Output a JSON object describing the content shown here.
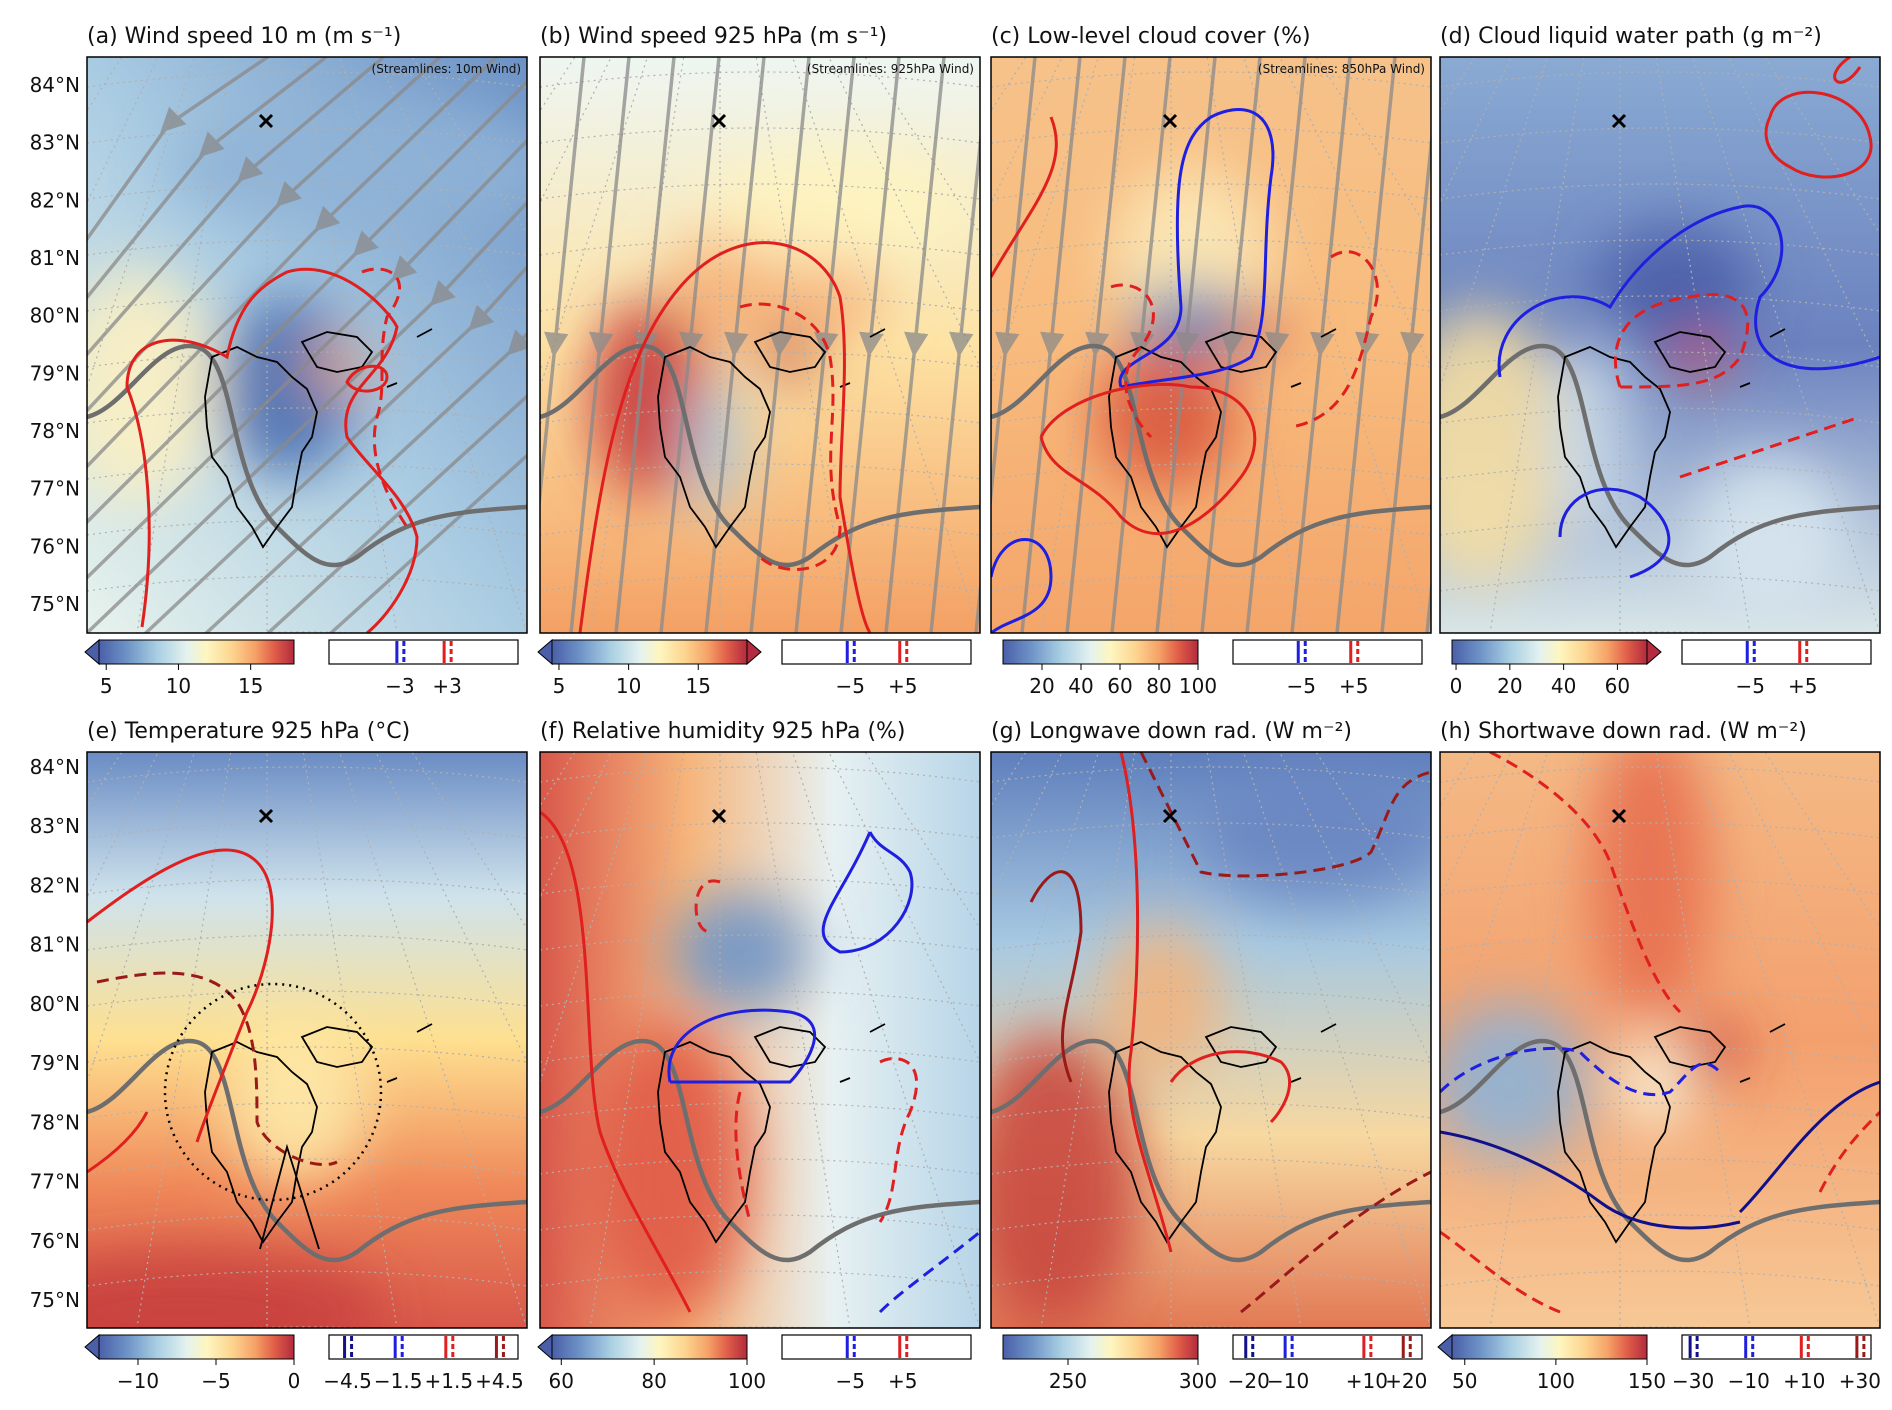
{
  "lat_labels": [
    "84°N",
    "83°N",
    "82°N",
    "81°N",
    "80°N",
    "79°N",
    "78°N",
    "77°N",
    "76°N",
    "75°N"
  ],
  "panels": [
    {
      "title": "(a) Wind speed 10 m (m s⁻¹)",
      "streamlines": "(Streamlines: 10m Wind)",
      "colorbar": {
        "lim": [
          4.5,
          18
        ],
        "ticks": [
          5,
          10,
          15
        ],
        "extend": "min"
      },
      "contours": {
        "lim": [
          -12,
          12
        ],
        "ticks": [
          {
            "value": -3,
            "label": "−3",
            "color": "#1f1fe0"
          },
          {
            "value": 3,
            "label": "+3",
            "color": "#e01f1f"
          }
        ]
      }
    },
    {
      "title": "(b) Wind speed 925 hPa (m s⁻¹)",
      "streamlines": "(Streamlines: 925hPa Wind)",
      "colorbar": {
        "lim": [
          4.5,
          18.5
        ],
        "ticks": [
          5,
          10,
          15
        ],
        "extend": "both"
      },
      "contours": {
        "lim": [
          -18,
          18
        ],
        "ticks": [
          {
            "value": -5,
            "label": "−5",
            "color": "#1f1fe0"
          },
          {
            "value": 5,
            "label": "+5",
            "color": "#e01f1f"
          }
        ]
      }
    },
    {
      "title": "(c) Low-level cloud cover (%)",
      "streamlines": "(Streamlines: 850hPa Wind)",
      "colorbar": {
        "lim": [
          0,
          100
        ],
        "ticks": [
          20,
          40,
          60,
          80,
          100
        ],
        "extend": "neither"
      },
      "contours": {
        "lim": [
          -18,
          18
        ],
        "ticks": [
          {
            "value": -5,
            "label": "−5",
            "color": "#1f1fe0"
          },
          {
            "value": 5,
            "label": "+5",
            "color": "#e01f1f"
          }
        ]
      }
    },
    {
      "title": "(d) Cloud liquid water path (g m⁻²)",
      "colorbar": {
        "lim": [
          -1.5,
          71
        ],
        "ticks": [
          0,
          20,
          40,
          60
        ],
        "extend": "max"
      },
      "contours": {
        "lim": [
          -18,
          18
        ],
        "ticks": [
          {
            "value": -5,
            "label": "−5",
            "color": "#1f1fe0"
          },
          {
            "value": 5,
            "label": "+5",
            "color": "#e01f1f"
          }
        ]
      }
    },
    {
      "title": "(e) Temperature 925 hPa (°C)",
      "colorbar": {
        "lim": [
          -12.5,
          0
        ],
        "ticks": [
          {
            "value": -10,
            "label": "−10"
          },
          {
            "value": -5,
            "label": "−5"
          },
          0
        ],
        "extend": "min"
      },
      "contours": {
        "lim": [
          -5.6,
          5.6
        ],
        "ticks": [
          {
            "value": -4.5,
            "label": "−4.5",
            "color": "#10108a"
          },
          {
            "value": -1.5,
            "label": "−1.5",
            "color": "#1f1fe0"
          },
          {
            "value": 1.5,
            "label": "+1.5",
            "color": "#e01f1f"
          },
          {
            "value": 4.5,
            "label": "+4.5",
            "color": "#9a1a1a"
          }
        ]
      }
    },
    {
      "title": "(f) Relative humidity 925 hPa (%)",
      "colorbar": {
        "lim": [
          58,
          100
        ],
        "ticks": [
          60,
          80,
          100
        ],
        "extend": "min"
      },
      "contours": {
        "lim": [
          -18,
          18
        ],
        "ticks": [
          {
            "value": -5,
            "label": "−5",
            "color": "#1f1fe0"
          },
          {
            "value": 5,
            "label": "+5",
            "color": "#e01f1f"
          }
        ]
      }
    },
    {
      "title": "(g) Longwave down rad. (W m⁻²)",
      "colorbar": {
        "lim": [
          225,
          300
        ],
        "ticks": [
          250,
          300
        ],
        "extend": "neither"
      },
      "contours": {
        "lim": [
          -24,
          24
        ],
        "ticks": [
          {
            "value": -20,
            "label": "−20",
            "color": "#10108a"
          },
          {
            "value": -10,
            "label": "−10",
            "color": "#1f1fe0"
          },
          {
            "value": 10,
            "label": "+10",
            "color": "#e01f1f"
          },
          {
            "value": 20,
            "label": "+20",
            "color": "#9a1a1a"
          }
        ]
      }
    },
    {
      "title": "(h) Shortwave down rad. (W m⁻²)",
      "colorbar": {
        "lim": [
          43,
          150
        ],
        "ticks": [
          50,
          100,
          150
        ],
        "extend": "min"
      },
      "contours": {
        "lim": [
          -34,
          34
        ],
        "ticks": [
          {
            "value": -30,
            "label": "−30",
            "color": "#10108a"
          },
          {
            "value": -10,
            "label": "−10",
            "color": "#1f1fe0"
          },
          {
            "value": 10,
            "label": "+10",
            "color": "#e01f1f"
          },
          {
            "value": 30,
            "label": "+30",
            "color": "#9a1a1a"
          }
        ]
      }
    }
  ]
}
